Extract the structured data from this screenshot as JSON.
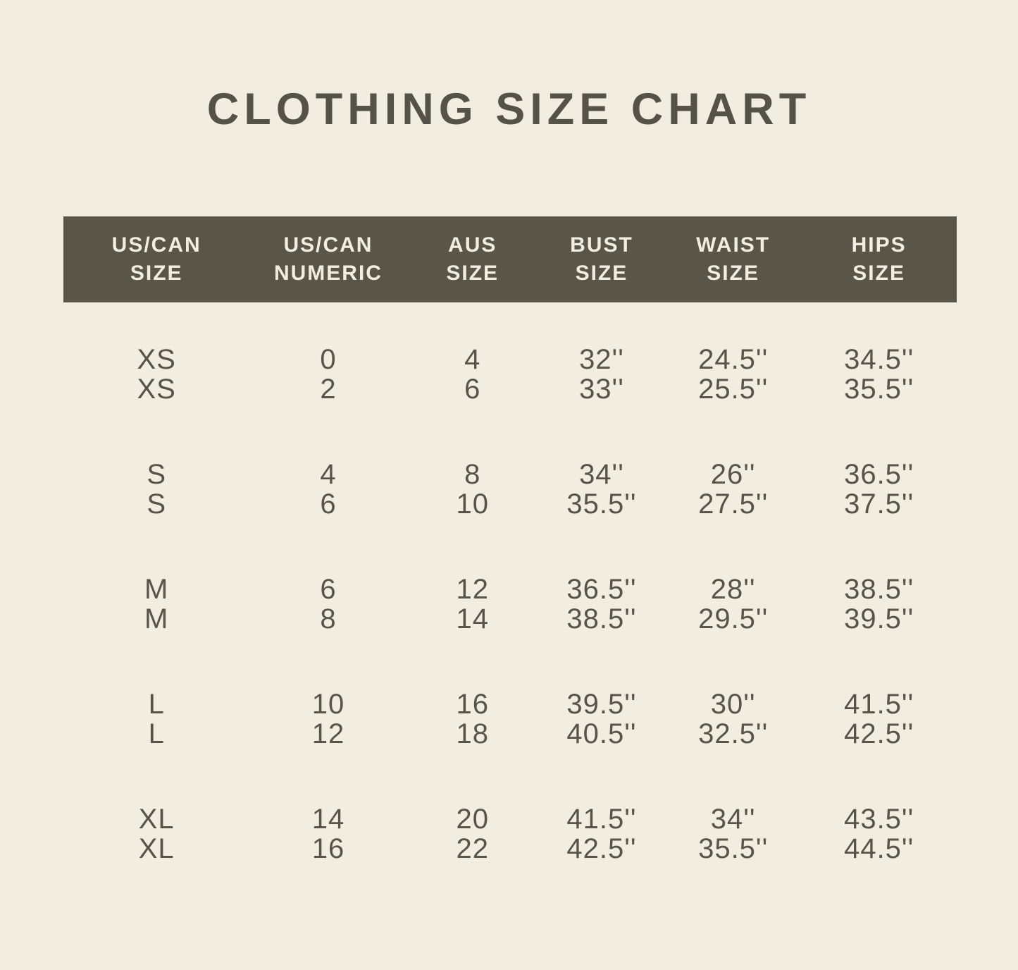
{
  "colors": {
    "background": "#f1ede1",
    "band": "#595649",
    "band_text": "#f2ede1",
    "text": "#57544a"
  },
  "chart_data": {
    "type": "table",
    "title": "CLOTHING SIZE CHART",
    "columns": [
      {
        "line1": "US/CAN",
        "line2": "SIZE"
      },
      {
        "line1": "US/CAN",
        "line2": "NUMERIC"
      },
      {
        "line1": "AUS",
        "line2": "SIZE"
      },
      {
        "line1": "BUST",
        "line2": "SIZE"
      },
      {
        "line1": "WAIST",
        "line2": "SIZE"
      },
      {
        "line1": "HIPS",
        "line2": "SIZE"
      }
    ],
    "rows": [
      [
        "XS",
        "0",
        "4",
        "32''",
        "24.5''",
        "34.5''"
      ],
      [
        "XS",
        "2",
        "6",
        "33''",
        "25.5''",
        "35.5''"
      ],
      [
        "S",
        "4",
        "8",
        "34''",
        "26''",
        "36.5''"
      ],
      [
        "S",
        "6",
        "10",
        "35.5''",
        "27.5''",
        "37.5''"
      ],
      [
        "M",
        "6",
        "12",
        "36.5''",
        "28''",
        "38.5''"
      ],
      [
        "M",
        "8",
        "14",
        "38.5''",
        "29.5''",
        "39.5''"
      ],
      [
        "L",
        "10",
        "16",
        "39.5''",
        "30''",
        "41.5''"
      ],
      [
        "L",
        "12",
        "18",
        "40.5''",
        "32.5''",
        "42.5''"
      ],
      [
        "XL",
        "14",
        "20",
        "41.5''",
        "34''",
        "43.5''"
      ],
      [
        "XL",
        "16",
        "22",
        "42.5''",
        "35.5''",
        "44.5''"
      ]
    ]
  }
}
